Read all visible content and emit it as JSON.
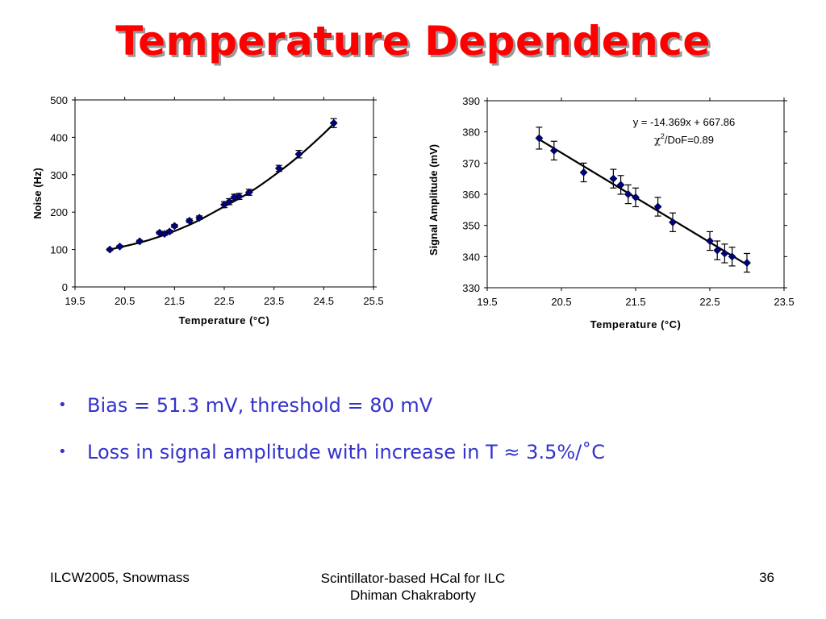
{
  "slide": {
    "title": "Temperature Dependence",
    "title_color": "#ff0000",
    "bullet_color": "#3333cc",
    "bullets": [
      "Bias = 51.3 mV, threshold = 80 mV",
      "Loss in signal amplitude with increase in T ≈ 3.5%/˚C"
    ],
    "footer": {
      "left": "ILCW2005, Snowmass",
      "center_line1": "Scintillator-based HCal for ILC",
      "center_line2": "Dhiman Chakraborty",
      "page": "36"
    }
  },
  "chart_data": [
    {
      "type": "scatter",
      "xlabel": "Temperature (°C)",
      "ylabel": "Noise (Hz)",
      "xlim": [
        19.5,
        25.5
      ],
      "ylim": [
        0,
        500
      ],
      "xticks": [
        "19.5",
        "20.5",
        "21.5",
        "22.5",
        "23.5",
        "24.5",
        "25.5"
      ],
      "yticks": [
        "0",
        "100",
        "200",
        "300",
        "400",
        "500"
      ],
      "grid": false,
      "marker_color": "#000080",
      "series": [
        {
          "x": [
            20.2,
            20.4,
            20.8,
            21.2,
            21.3,
            21.4,
            21.5,
            21.8,
            22.0,
            22.5,
            22.6,
            22.7,
            22.8,
            23.0,
            23.6,
            24.0,
            24.7
          ],
          "y": [
            100,
            108,
            122,
            145,
            142,
            148,
            163,
            177,
            185,
            220,
            228,
            240,
            242,
            253,
            317,
            355,
            438
          ],
          "err": [
            3,
            3,
            3,
            4,
            4,
            4,
            4,
            5,
            5,
            8,
            8,
            8,
            8,
            8,
            8,
            10,
            12
          ]
        }
      ],
      "fit": {
        "type": "curve",
        "x": [
          20.2,
          21.0,
          21.8,
          22.5,
          23.0,
          23.5,
          24.0,
          24.5,
          24.75
        ],
        "y": [
          100,
          126,
          166,
          215,
          252,
          298,
          350,
          410,
          443
        ]
      }
    },
    {
      "type": "scatter",
      "xlabel": "Temperature (°C)",
      "ylabel": "Signal Amplitude (mV)",
      "xlim": [
        19.5,
        23.5
      ],
      "ylim": [
        330,
        390
      ],
      "xticks": [
        "19.5",
        "20.5",
        "21.5",
        "22.5",
        "23.5"
      ],
      "yticks": [
        "330",
        "340",
        "350",
        "360",
        "370",
        "380",
        "390"
      ],
      "grid": false,
      "marker_color": "#000080",
      "series": [
        {
          "x": [
            20.2,
            20.4,
            20.8,
            21.2,
            21.3,
            21.4,
            21.5,
            21.8,
            22.0,
            22.5,
            22.6,
            22.7,
            22.8,
            23.0
          ],
          "y": [
            378,
            374,
            367,
            365,
            363,
            360,
            359,
            356,
            351,
            345,
            342,
            341,
            340,
            338
          ],
          "err": [
            3.5,
            3,
            3,
            3,
            3,
            3,
            3,
            3,
            3,
            3,
            3,
            3,
            3,
            3
          ]
        }
      ],
      "fit": {
        "type": "line",
        "x": [
          20.2,
          23.0
        ],
        "y": [
          377.6,
          337.4
        ]
      },
      "annotation_line1": "y = -14.369x + 667.86",
      "annotation_chi": "χ",
      "annotation_sup": "2",
      "annotation_rest": "/DoF=0.89"
    }
  ]
}
